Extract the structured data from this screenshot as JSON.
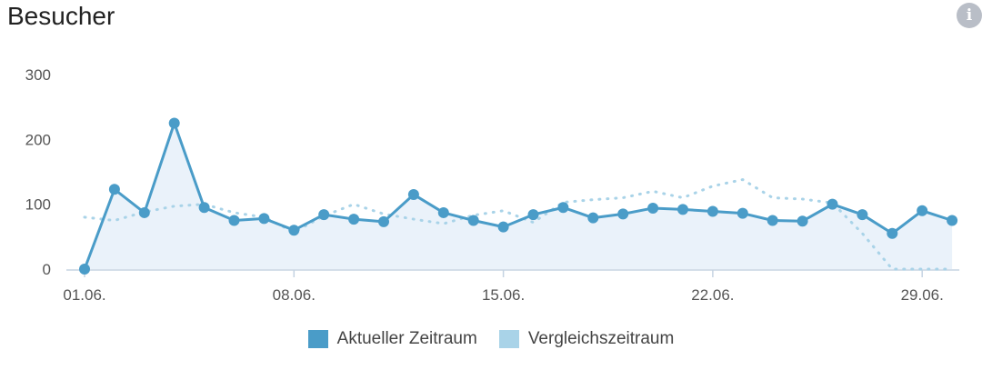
{
  "header": {
    "title": "Besucher",
    "info_label": "i"
  },
  "colors": {
    "current": "#4a9cc8",
    "comparison": "#a9d3e8",
    "area": "#eaf2fa",
    "axis": "#c5d3e2"
  },
  "chart_data": {
    "type": "line",
    "title": "Besucher",
    "ylim": [
      0,
      300
    ],
    "yticks": [
      0,
      100,
      200,
      300
    ],
    "xticks": [
      "01.06.",
      "08.06.",
      "15.06.",
      "22.06.",
      "29.06."
    ],
    "x": [
      "01.06.",
      "02.06.",
      "03.06.",
      "04.06.",
      "05.06.",
      "06.06.",
      "07.06.",
      "08.06.",
      "09.06.",
      "10.06.",
      "11.06.",
      "12.06.",
      "13.06.",
      "14.06.",
      "15.06.",
      "16.06.",
      "17.06.",
      "18.06.",
      "19.06.",
      "20.06.",
      "21.06.",
      "22.06.",
      "23.06.",
      "24.06.",
      "25.06.",
      "26.06.",
      "27.06.",
      "28.06.",
      "29.06.",
      "30.06."
    ],
    "series": [
      {
        "name": "Aktueller Zeitraum",
        "values": [
          0,
          123,
          87,
          225,
          95,
          75,
          78,
          60,
          84,
          77,
          73,
          115,
          87,
          75,
          65,
          84,
          95,
          79,
          85,
          94,
          92,
          89,
          86,
          75,
          74,
          100,
          84,
          55,
          90,
          75
        ]
      },
      {
        "name": "Vergleichszeitraum",
        "values": [
          80,
          75,
          88,
          97,
          100,
          87,
          80,
          57,
          82,
          100,
          85,
          77,
          70,
          83,
          90,
          72,
          103,
          107,
          110,
          120,
          110,
          128,
          138,
          110,
          108,
          102,
          55,
          0,
          0,
          0
        ]
      }
    ],
    "legend_position": "bottom"
  },
  "legend": {
    "current": "Aktueller Zeitraum",
    "comparison": "Vergleichszeitraum"
  }
}
